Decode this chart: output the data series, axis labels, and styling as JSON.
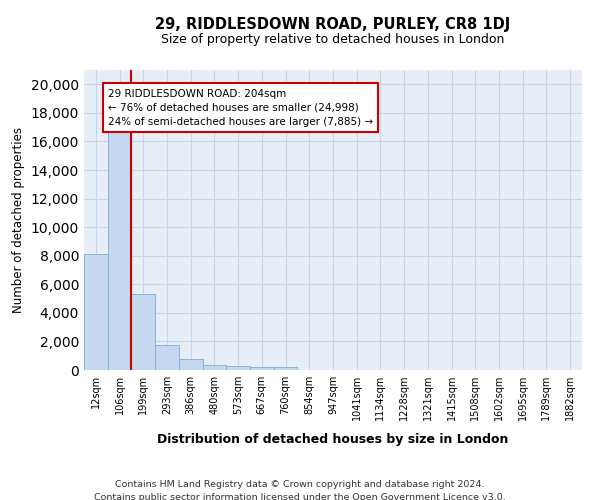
{
  "title": "29, RIDDLESDOWN ROAD, PURLEY, CR8 1DJ",
  "subtitle": "Size of property relative to detached houses in London",
  "xlabel": "Distribution of detached houses by size in London",
  "ylabel": "Number of detached properties",
  "bar_color": "#c5d8ef",
  "bar_edge_color": "#7aadd4",
  "grid_color": "#c8d4e8",
  "background_color": "#e8eef8",
  "vline_x": 2,
  "vline_color": "#cc0000",
  "annotation_box_color": "#cc0000",
  "annotation_line1": "29 RIDDLESDOWN ROAD: 204sqm",
  "annotation_line2": "← 76% of detached houses are smaller (24,998)",
  "annotation_line3": "24% of semi-detached houses are larger (7,885) →",
  "categories": [
    "12sqm",
    "106sqm",
    "199sqm",
    "293sqm",
    "386sqm",
    "480sqm",
    "573sqm",
    "667sqm",
    "760sqm",
    "854sqm",
    "947sqm",
    "1041sqm",
    "1134sqm",
    "1228sqm",
    "1321sqm",
    "1415sqm",
    "1508sqm",
    "1602sqm",
    "1695sqm",
    "1789sqm",
    "1882sqm"
  ],
  "values": [
    8100,
    16650,
    5350,
    1750,
    800,
    350,
    270,
    220,
    220,
    0,
    0,
    0,
    0,
    0,
    0,
    0,
    0,
    0,
    0,
    0,
    0
  ],
  "ylim": [
    0,
    21000
  ],
  "yticks": [
    0,
    2000,
    4000,
    6000,
    8000,
    10000,
    12000,
    14000,
    16000,
    18000,
    20000
  ],
  "footer_line1": "Contains HM Land Registry data © Crown copyright and database right 2024.",
  "footer_line2": "Contains public sector information licensed under the Open Government Licence v3.0."
}
